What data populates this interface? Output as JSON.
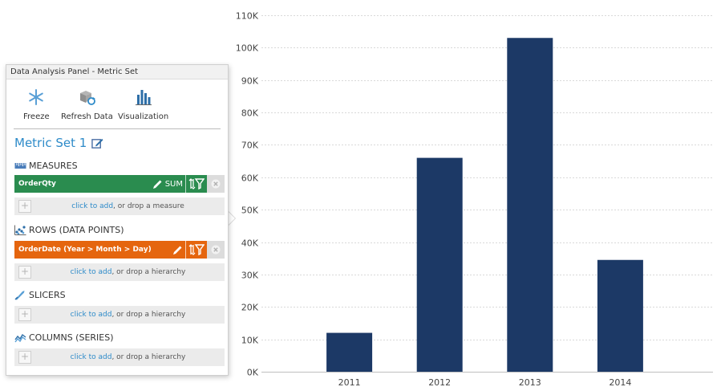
{
  "panel": {
    "title": "Data Analysis Panel - Metric Set",
    "toolbar": {
      "freeze": "Freeze",
      "refresh": "Refresh Data",
      "visualization": "Visualization"
    },
    "metric_set_title": "Metric Set 1",
    "measures": {
      "header": "MEASURES",
      "item": {
        "label": "OrderQty",
        "aggregation": "SUM",
        "color": "#2a8c4f"
      },
      "drop": {
        "link": "click to add",
        "rest": ", or drop a measure"
      }
    },
    "rows": {
      "header": "ROWS (DATA POINTS)",
      "item": {
        "label": "OrderDate (Year > Month > Day)",
        "color": "#e5650e"
      },
      "drop": {
        "link": "click to add",
        "rest": ", or drop a hierarchy"
      }
    },
    "slicers": {
      "header": "SLICERS",
      "drop": {
        "link": "click to add",
        "rest": ", or drop a hierarchy"
      }
    },
    "columns": {
      "header": "COLUMNS (SERIES)",
      "drop": {
        "link": "click to add",
        "rest": ", or drop a hierarchy"
      }
    }
  },
  "chart_data": {
    "type": "bar",
    "categories": [
      "2011",
      "2012",
      "2013",
      "2014"
    ],
    "values": [
      12000,
      66000,
      103000,
      34500
    ],
    "ylim": [
      0,
      110000
    ],
    "yticks": [
      0,
      10000,
      20000,
      30000,
      40000,
      50000,
      60000,
      70000,
      80000,
      90000,
      100000,
      110000
    ],
    "ytick_labels": [
      "0K",
      "10K",
      "20K",
      "30K",
      "40K",
      "50K",
      "60K",
      "70K",
      "80K",
      "90K",
      "100K",
      "110K"
    ],
    "grid": true,
    "bar_color": "#1c3966"
  }
}
